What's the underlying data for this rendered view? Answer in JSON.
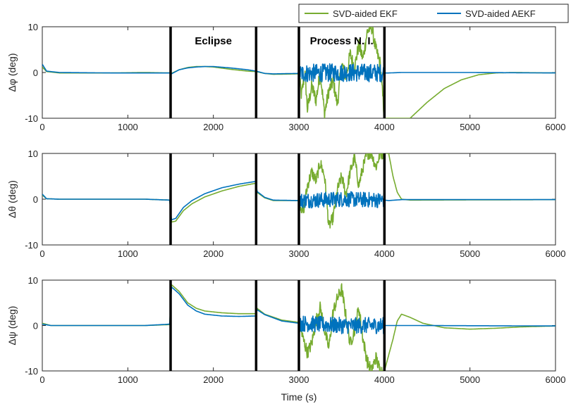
{
  "chart_data": {
    "type": "line",
    "xlabel": "Time (s)",
    "xlim": [
      0,
      6000
    ],
    "x_ticks": [
      0,
      1000,
      2000,
      3000,
      4000,
      5000,
      6000
    ],
    "legend": {
      "placement": "top-right",
      "entries": [
        {
          "name": "SVD-aided EKF",
          "color": "#77ac30"
        },
        {
          "name": "SVD-aided AEKF",
          "color": "#0072bd"
        }
      ]
    },
    "phase_boundaries": [
      1500,
      2500,
      3000,
      4000
    ],
    "annotations": [
      {
        "text": "Eclipse",
        "x": 2000
      },
      {
        "text": "Process N. I.",
        "x": 3500
      }
    ],
    "panels": [
      {
        "ylabel": "Δφ (deg)",
        "ylim": [
          -10,
          10
        ],
        "y_ticks": [
          -10,
          0,
          10
        ],
        "series": [
          {
            "name": "SVD-aided EKF",
            "color": "#77ac30",
            "noise": {
              "range": [
                3000,
                4000
              ],
              "amplitude": 1.5
            },
            "points": [
              [
                0,
                1.2
              ],
              [
                50,
                0.2
              ],
              [
                200,
                -0.1
              ],
              [
                800,
                -0.1
              ],
              [
                1200,
                0
              ],
              [
                1490,
                -0.1
              ],
              [
                1510,
                -0.2
              ],
              [
                1600,
                0.6
              ],
              [
                1700,
                1.1
              ],
              [
                1800,
                1.3
              ],
              [
                1900,
                1.3
              ],
              [
                2000,
                1.2
              ],
              [
                2200,
                0.7
              ],
              [
                2400,
                0.3
              ],
              [
                2500,
                0.2
              ],
              [
                2600,
                -0.2
              ],
              [
                2700,
                -0.4
              ],
              [
                3000,
                -0.3
              ],
              [
                3030,
                -5
              ],
              [
                3070,
                0
              ],
              [
                3100,
                -8
              ],
              [
                3150,
                -3
              ],
              [
                3200,
                -6
              ],
              [
                3250,
                0
              ],
              [
                3300,
                -9
              ],
              [
                3350,
                -4
              ],
              [
                3400,
                -2
              ],
              [
                3450,
                -7
              ],
              [
                3500,
                2
              ],
              [
                3550,
                -1
              ],
              [
                3600,
                4
              ],
              [
                3650,
                1
              ],
              [
                3700,
                6
              ],
              [
                3750,
                3
              ],
              [
                3800,
                9
              ],
              [
                3850,
                10
              ],
              [
                3900,
                5
              ],
              [
                3950,
                2
              ],
              [
                4000,
                -10
              ],
              [
                4300,
                -10
              ],
              [
                4500,
                -6.5
              ],
              [
                4700,
                -3.5
              ],
              [
                4900,
                -1.6
              ],
              [
                5100,
                -0.5
              ],
              [
                5300,
                -0.1
              ],
              [
                5500,
                0
              ],
              [
                6000,
                -0.1
              ]
            ]
          },
          {
            "name": "SVD-aided AEKF",
            "color": "#0072bd",
            "noise": {
              "range": [
                3000,
                4000
              ],
              "amplitude": 2.0
            },
            "points": [
              [
                0,
                1.8
              ],
              [
                50,
                0.3
              ],
              [
                200,
                0
              ],
              [
                800,
                -0.1
              ],
              [
                1200,
                -0.1
              ],
              [
                1490,
                -0.1
              ],
              [
                1510,
                -0.3
              ],
              [
                1600,
                0.6
              ],
              [
                1700,
                1.0
              ],
              [
                1800,
                1.2
              ],
              [
                1900,
                1.3
              ],
              [
                2000,
                1.3
              ],
              [
                2200,
                1.0
              ],
              [
                2400,
                0.6
              ],
              [
                2500,
                0.3
              ],
              [
                2600,
                -0.2
              ],
              [
                2700,
                -0.3
              ],
              [
                3000,
                -0.2
              ],
              [
                3500,
                0
              ],
              [
                4000,
                -0.1
              ],
              [
                4050,
                -0.1
              ],
              [
                4200,
                0
              ],
              [
                5000,
                0
              ],
              [
                6000,
                -0.1
              ]
            ]
          }
        ]
      },
      {
        "ylabel": "Δθ (deg)",
        "ylim": [
          -10,
          10
        ],
        "y_ticks": [
          -10,
          0,
          10
        ],
        "series": [
          {
            "name": "SVD-aided EKF",
            "color": "#77ac30",
            "noise": {
              "range": [
                3000,
                4000
              ],
              "amplitude": 1.3
            },
            "points": [
              [
                0,
                0.9
              ],
              [
                50,
                0.1
              ],
              [
                200,
                0
              ],
              [
                1200,
                0
              ],
              [
                1490,
                -0.2
              ],
              [
                1510,
                -5
              ],
              [
                1560,
                -4.8
              ],
              [
                1650,
                -2.5
              ],
              [
                1750,
                -1
              ],
              [
                1900,
                0.5
              ],
              [
                2100,
                1.8
              ],
              [
                2300,
                2.8
              ],
              [
                2500,
                3.5
              ],
              [
                2510,
                1.5
              ],
              [
                2600,
                0.3
              ],
              [
                2700,
                -0.3
              ],
              [
                3000,
                -0.3
              ],
              [
                3050,
                -3
              ],
              [
                3100,
                3
              ],
              [
                3150,
                6
              ],
              [
                3200,
                4
              ],
              [
                3250,
                8
              ],
              [
                3300,
                5
              ],
              [
                3350,
                -6
              ],
              [
                3400,
                -4
              ],
              [
                3450,
                2
              ],
              [
                3500,
                5
              ],
              [
                3550,
                1
              ],
              [
                3600,
                6
              ],
              [
                3650,
                9
              ],
              [
                3700,
                3
              ],
              [
                3750,
                7
              ],
              [
                3800,
                10
              ],
              [
                3850,
                10
              ],
              [
                3900,
                7
              ],
              [
                3950,
                10
              ],
              [
                4000,
                10
              ],
              [
                4050,
                10
              ],
              [
                4100,
                5
              ],
              [
                4150,
                1.5
              ],
              [
                4200,
                0
              ],
              [
                4300,
                -0.2
              ],
              [
                6000,
                -0.1
              ]
            ]
          },
          {
            "name": "SVD-aided AEKF",
            "color": "#0072bd",
            "noise": {
              "range": [
                3000,
                4000
              ],
              "amplitude": 1.7
            },
            "points": [
              [
                0,
                1.1
              ],
              [
                50,
                0.1
              ],
              [
                200,
                0
              ],
              [
                1200,
                0
              ],
              [
                1490,
                -0.2
              ],
              [
                1510,
                -4.5
              ],
              [
                1560,
                -4.2
              ],
              [
                1650,
                -1.8
              ],
              [
                1750,
                -0.3
              ],
              [
                1900,
                1.2
              ],
              [
                2100,
                2.5
              ],
              [
                2300,
                3.3
              ],
              [
                2500,
                3.9
              ],
              [
                2510,
                1.7
              ],
              [
                2600,
                0.4
              ],
              [
                2700,
                -0.2
              ],
              [
                3000,
                -0.3
              ],
              [
                3500,
                0
              ],
              [
                4000,
                -0.2
              ],
              [
                4050,
                -0.3
              ],
              [
                4200,
                -0.1
              ],
              [
                6000,
                -0.1
              ]
            ]
          }
        ]
      },
      {
        "ylabel": "Δψ (deg)",
        "ylim": [
          -10,
          10
        ],
        "y_ticks": [
          -10,
          0,
          10
        ],
        "series": [
          {
            "name": "SVD-aided EKF",
            "color": "#77ac30",
            "noise": {
              "range": [
                3000,
                4000
              ],
              "amplitude": 1.4
            },
            "points": [
              [
                0,
                0.5
              ],
              [
                100,
                0
              ],
              [
                1200,
                0
              ],
              [
                1490,
                0.2
              ],
              [
                1510,
                9
              ],
              [
                1600,
                7.5
              ],
              [
                1700,
                5
              ],
              [
                1800,
                3.8
              ],
              [
                1900,
                3.2
              ],
              [
                2100,
                2.8
              ],
              [
                2300,
                2.6
              ],
              [
                2500,
                2.6
              ],
              [
                2510,
                3.8
              ],
              [
                2600,
                2.5
              ],
              [
                2800,
                1.2
              ],
              [
                3000,
                0.7
              ],
              [
                3050,
                -3
              ],
              [
                3100,
                -6
              ],
              [
                3150,
                -4
              ],
              [
                3200,
                1
              ],
              [
                3250,
                4
              ],
              [
                3300,
                -1
              ],
              [
                3350,
                -5
              ],
              [
                3400,
                3
              ],
              [
                3450,
                6
              ],
              [
                3500,
                8
              ],
              [
                3550,
                2
              ],
              [
                3600,
                -4
              ],
              [
                3650,
                -1
              ],
              [
                3700,
                4
              ],
              [
                3750,
                -3
              ],
              [
                3800,
                -8
              ],
              [
                3850,
                -10
              ],
              [
                3900,
                -7
              ],
              [
                3950,
                -10
              ],
              [
                4000,
                -10
              ],
              [
                4100,
                -3
              ],
              [
                4150,
                1
              ],
              [
                4200,
                2.5
              ],
              [
                4300,
                1.8
              ],
              [
                4450,
                0.5
              ],
              [
                4700,
                -0.5
              ],
              [
                5000,
                -0.8
              ],
              [
                5300,
                -0.6
              ],
              [
                5600,
                -0.3
              ],
              [
                6000,
                -0.1
              ]
            ]
          },
          {
            "name": "SVD-aided AEKF",
            "color": "#0072bd",
            "noise": {
              "range": [
                3000,
                4000
              ],
              "amplitude": 1.8
            },
            "points": [
              [
                0,
                0.3
              ],
              [
                100,
                0
              ],
              [
                1200,
                0
              ],
              [
                1490,
                0.3
              ],
              [
                1510,
                8.5
              ],
              [
                1600,
                7
              ],
              [
                1700,
                4.5
              ],
              [
                1800,
                3.2
              ],
              [
                1900,
                2.5
              ],
              [
                2100,
                2.1
              ],
              [
                2300,
                2.0
              ],
              [
                2500,
                2.1
              ],
              [
                2510,
                3.5
              ],
              [
                2600,
                2.4
              ],
              [
                2800,
                1.0
              ],
              [
                3000,
                0.5
              ],
              [
                3500,
                0
              ],
              [
                4000,
                0
              ],
              [
                4100,
                0
              ],
              [
                4300,
                0
              ],
              [
                6000,
                -0.1
              ]
            ]
          }
        ]
      }
    ]
  }
}
